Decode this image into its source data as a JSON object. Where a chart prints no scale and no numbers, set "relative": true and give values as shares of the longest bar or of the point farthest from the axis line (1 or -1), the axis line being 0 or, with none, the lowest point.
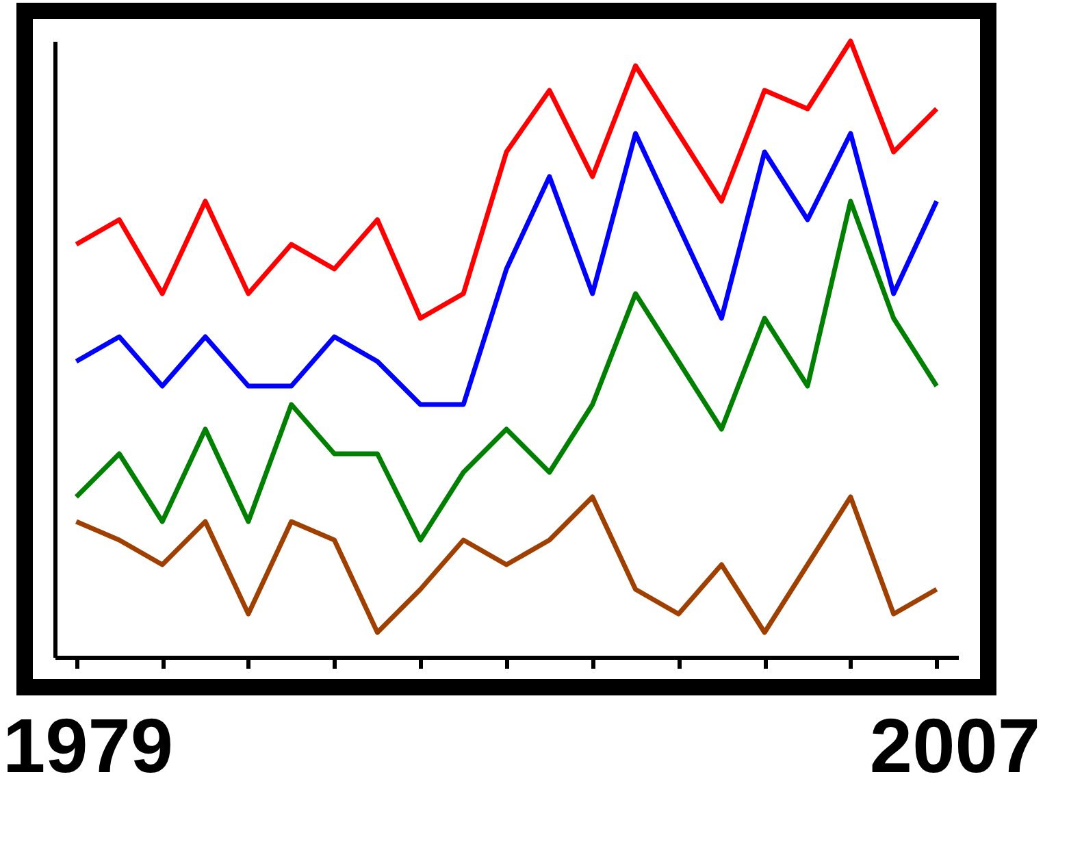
{
  "chart_data": {
    "type": "line",
    "relative": true,
    "tick_labels": false,
    "grid": false,
    "legend": false,
    "categories": [
      null,
      null,
      null,
      null,
      null,
      null,
      null,
      null,
      null,
      null,
      null,
      null,
      null,
      null,
      null,
      null,
      null,
      null,
      null,
      null,
      null
    ],
    "annotations": [
      "1979",
      "2007"
    ],
    "series": [
      {
        "color": "#ff0000",
        "values": [
          0.67,
          0.71,
          0.59,
          0.74,
          0.59,
          0.67,
          0.63,
          0.71,
          0.55,
          0.59,
          0.82,
          0.92,
          0.78,
          0.96,
          0.85,
          0.74,
          0.92,
          0.89,
          1.0,
          0.82,
          0.89
        ]
      },
      {
        "color": "#0000ff",
        "values": [
          0.48,
          0.52,
          0.44,
          0.52,
          0.44,
          0.44,
          0.52,
          0.48,
          0.41,
          0.41,
          0.63,
          0.78,
          0.59,
          0.85,
          0.7,
          0.55,
          0.82,
          0.71,
          0.85,
          0.59,
          0.74
        ]
      },
      {
        "color": "#008000",
        "values": [
          0.26,
          0.33,
          0.22,
          0.37,
          0.22,
          0.41,
          0.33,
          0.33,
          0.19,
          0.3,
          0.37,
          0.3,
          0.41,
          0.59,
          0.48,
          0.37,
          0.55,
          0.44,
          0.74,
          0.55,
          0.44
        ]
      },
      {
        "color": "#a04000",
        "values": [
          0.22,
          0.19,
          0.15,
          0.22,
          0.07,
          0.22,
          0.19,
          0.04,
          0.11,
          0.19,
          0.15,
          0.19,
          0.26,
          0.11,
          0.07,
          0.15,
          0.04,
          0.15,
          0.26,
          0.07,
          0.11
        ]
      }
    ]
  }
}
